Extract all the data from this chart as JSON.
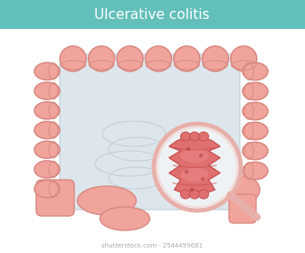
{
  "title": "Ulcerative colitis",
  "title_bg_color": "#62bfba",
  "title_text_color": "#ffffff",
  "title_fontsize": 11,
  "bg_color": "#ffffff",
  "colon_fill": "#f0a49c",
  "colon_stroke": "#d98880",
  "colon_inner_line": "#d4887e",
  "inner_fill": "#dde6ec",
  "inner_stroke": "#c0cdd6",
  "mag_rim_color": "#e8b0aa",
  "mag_fill": "#eef2f5",
  "inflamed_fill": "#e07070",
  "inflamed_dark": "#c85050",
  "inflamed_light": "#f09090",
  "handle_color": "#d49090",
  "watermark": "shutterstock.com · 2544499681",
  "watermark_color": "#aaaaaa",
  "watermark_fontsize": 5
}
